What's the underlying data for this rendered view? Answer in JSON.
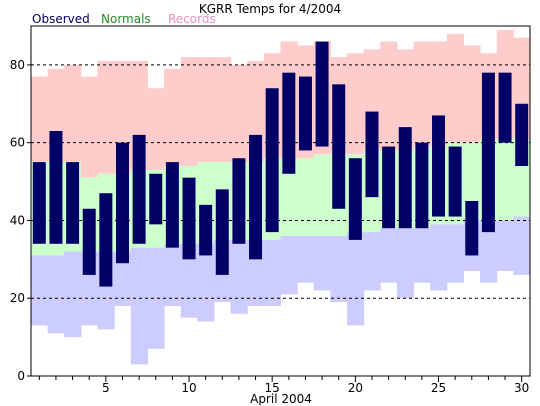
{
  "chart_data": {
    "type": "bar",
    "title": "KGRR Temps for 4/2004",
    "xlabel": "April 2004",
    "ylabel": "",
    "ylim": [
      0,
      90
    ],
    "xlim": [
      0.5,
      30.5
    ],
    "yticks": [
      0,
      20,
      40,
      60,
      80
    ],
    "xticks": [
      5,
      10,
      15,
      20,
      25,
      30
    ],
    "grid": "horizontal dashed at 20, 40, 60, 80",
    "legend_position": "top-left",
    "legend": [
      {
        "label": "Observed",
        "color": "#000066"
      },
      {
        "label": "Normals",
        "color": "#228b22"
      },
      {
        "label": "Records",
        "color": "#e98fbf"
      }
    ],
    "days": [
      1,
      2,
      3,
      4,
      5,
      6,
      7,
      8,
      9,
      10,
      11,
      12,
      13,
      14,
      15,
      16,
      17,
      18,
      19,
      20,
      21,
      22,
      23,
      24,
      25,
      26,
      27,
      28,
      29,
      30
    ],
    "observed_high": [
      55,
      63,
      55,
      43,
      47,
      60,
      62,
      52,
      55,
      51,
      44,
      48,
      56,
      62,
      74,
      78,
      77,
      86,
      75,
      56,
      68,
      59,
      64,
      60,
      67,
      59,
      45,
      78,
      78,
      70
    ],
    "observed_low": [
      34,
      34,
      34,
      26,
      23,
      29,
      34,
      39,
      33,
      30,
      31,
      26,
      34,
      30,
      37,
      52,
      58,
      59,
      43,
      35,
      46,
      38,
      38,
      38,
      41,
      41,
      31,
      37,
      60,
      54
    ],
    "normal_high": [
      55,
      55,
      55,
      51,
      52,
      52,
      53,
      53,
      54,
      54,
      55,
      55,
      55,
      55,
      56,
      56,
      56,
      57,
      57,
      57,
      58,
      58,
      58,
      59,
      59,
      60,
      60,
      61,
      61,
      61
    ],
    "normal_low": [
      31,
      31,
      32,
      32,
      32,
      32,
      33,
      33,
      34,
      34,
      34,
      35,
      35,
      35,
      35,
      36,
      36,
      36,
      36,
      37,
      37,
      38,
      38,
      38,
      39,
      39,
      40,
      40,
      40,
      41
    ],
    "record_high": [
      77,
      79,
      80,
      77,
      81,
      81,
      81,
      74,
      79,
      82,
      82,
      82,
      80,
      81,
      83,
      86,
      85,
      86,
      82,
      83,
      84,
      86,
      84,
      86,
      86,
      88,
      85,
      83,
      89,
      87
    ],
    "record_low": [
      13,
      11,
      10,
      13,
      12,
      18,
      3,
      7,
      18,
      15,
      14,
      19,
      16,
      18,
      18,
      21,
      24,
      22,
      19,
      13,
      22,
      24,
      20,
      24,
      22,
      24,
      27,
      24,
      27,
      26
    ],
    "colors": {
      "observed": "#000066",
      "normals": "#ccffcc",
      "records_high": "#ffcccc",
      "records_low": "#ccccff",
      "grid": "#000000",
      "axis": "#000000"
    }
  }
}
